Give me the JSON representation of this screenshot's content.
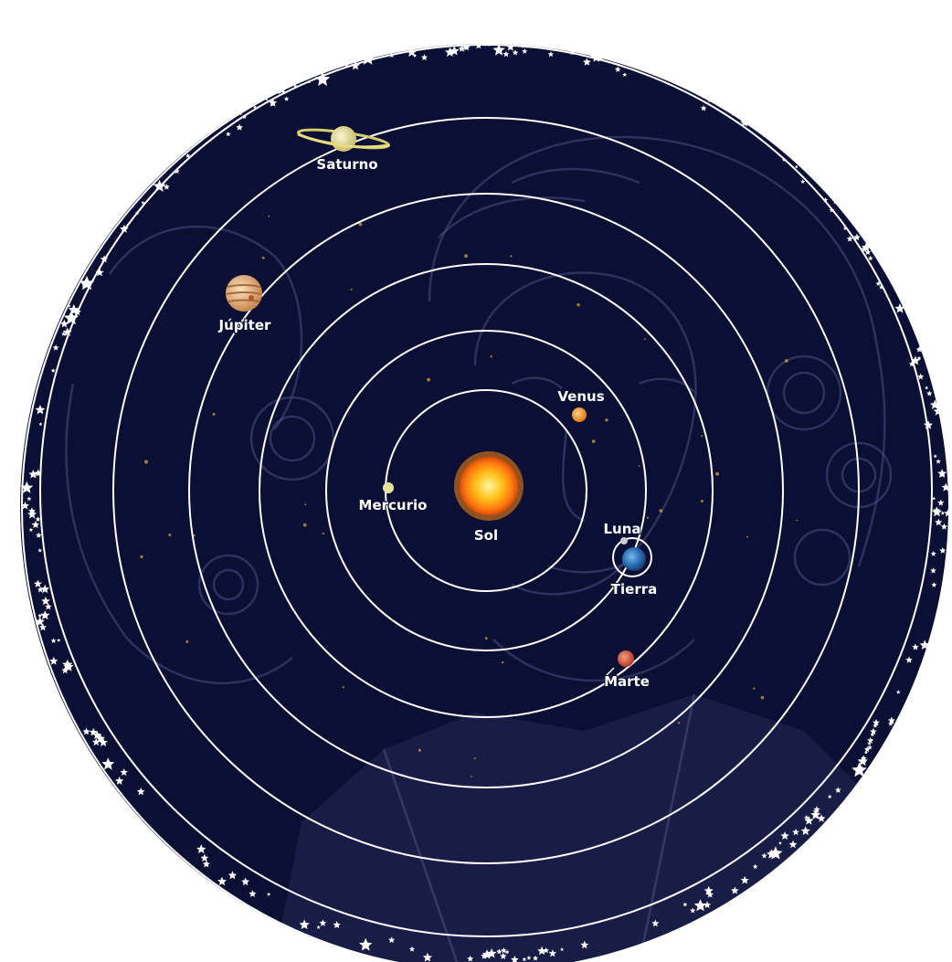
{
  "colors": {
    "sky": "#0b0f33",
    "orbit": "#ffffff",
    "sun": "#ffb020",
    "mercury": "#e6e2a0",
    "venus": "#f0902a",
    "earth": "#2a6fb8",
    "moon": "#cccccc",
    "mars": "#d8503a",
    "jupiter": "#e8b27a",
    "saturn": "#e8e0a0"
  },
  "bodies": {
    "sun": {
      "label": "Sol"
    },
    "mercury": {
      "label": "Mercurio"
    },
    "venus": {
      "label": "Venus"
    },
    "earth": {
      "label": "Tierra"
    },
    "moon": {
      "label": "Luna"
    },
    "mars": {
      "label": "Marte"
    },
    "jupiter": {
      "label": "Júpiter"
    },
    "saturn": {
      "label": "Saturno"
    }
  }
}
